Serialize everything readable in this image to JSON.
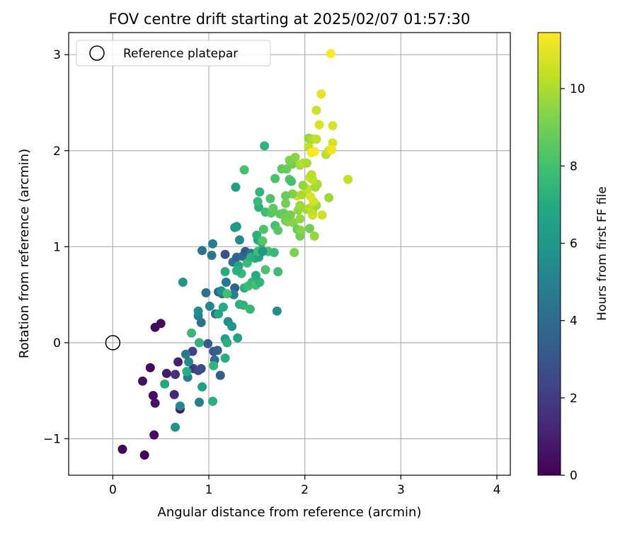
{
  "chart_data": {
    "type": "scatter",
    "title": "FOV centre drift starting at 2025/02/07 01:57:30",
    "xlabel": "Angular distance from reference (arcmin)",
    "ylabel": "Rotation from reference (arcmin)",
    "xlim": [
      -0.46,
      4.14
    ],
    "ylim": [
      -1.38,
      3.23
    ],
    "xticks": [
      0,
      1,
      2,
      3,
      4
    ],
    "yticks": [
      -1,
      0,
      1,
      2,
      3
    ],
    "xtick_labels": [
      "0",
      "1",
      "2",
      "3",
      "4"
    ],
    "ytick_labels": [
      "−1",
      "0",
      "1",
      "2",
      "3"
    ],
    "grid": true,
    "legend": {
      "placement": "top-left",
      "entries": [
        "Reference platepar"
      ]
    },
    "reference_point": {
      "name": "Reference platepar",
      "x": 0,
      "y": 0
    },
    "colorbar": {
      "label": "Hours from first FF file",
      "range": [
        0,
        11.45
      ],
      "ticks": [
        0,
        2,
        4,
        6,
        8,
        10
      ],
      "tick_labels": [
        "0",
        "2",
        "4",
        "6",
        "8",
        "10"
      ],
      "colormap": "viridis"
    },
    "points": [
      [
        0.33,
        -1.17,
        0.1
      ],
      [
        0.1,
        -1.11,
        0.2
      ],
      [
        0.43,
        -0.96,
        0.4
      ],
      [
        0.31,
        -0.4,
        0.5
      ],
      [
        0.42,
        -0.55,
        0.5
      ],
      [
        0.44,
        -0.63,
        0.6
      ],
      [
        0.39,
        -0.26,
        0.3
      ],
      [
        0.56,
        -0.32,
        0.8
      ],
      [
        0.44,
        0.16,
        0.3
      ],
      [
        0.5,
        0.2,
        0.4
      ],
      [
        0.68,
        -0.2,
        1.0
      ],
      [
        0.7,
        -0.69,
        0.6
      ],
      [
        0.64,
        -0.54,
        1.2
      ],
      [
        0.65,
        -0.33,
        1.6
      ],
      [
        0.83,
        -0.09,
        2.2
      ],
      [
        0.84,
        -0.27,
        1.8
      ],
      [
        0.89,
        -0.29,
        2.4
      ],
      [
        0.92,
        -0.27,
        2.6
      ],
      [
        1.12,
        -0.34,
        3.4
      ],
      [
        1.05,
        -0.09,
        3.0
      ],
      [
        0.99,
        -0.01,
        3.2
      ],
      [
        1.09,
        -0.08,
        3.6
      ],
      [
        1.06,
        -0.18,
        4.0
      ],
      [
        0.79,
        -0.2,
        5.4
      ],
      [
        0.76,
        -0.12,
        4.6
      ],
      [
        0.78,
        -0.36,
        5.0
      ],
      [
        0.9,
        -0.62,
        4.8
      ],
      [
        0.7,
        -0.66,
        5.2
      ],
      [
        0.65,
        -0.88,
        5.8
      ],
      [
        0.92,
        0.21,
        4.2
      ],
      [
        0.89,
        0.28,
        5.0
      ],
      [
        0.89,
        0.33,
        5.6
      ],
      [
        0.97,
        0.52,
        4.4
      ],
      [
        1.01,
        0.38,
        5.2
      ],
      [
        1.1,
        0.53,
        3.6
      ],
      [
        1.14,
        0.51,
        4.2
      ],
      [
        1.18,
        0.63,
        4.6
      ],
      [
        1.27,
        0.57,
        3.4
      ],
      [
        1.26,
        0.5,
        5.0
      ],
      [
        1.07,
        0.3,
        4.0
      ],
      [
        1.17,
        0.92,
        2.8
      ],
      [
        1.04,
        1.03,
        4.8
      ],
      [
        1.03,
        0.91,
        4.6
      ],
      [
        0.93,
        0.96,
        4.4
      ],
      [
        1.25,
        0.84,
        4.2
      ],
      [
        1.29,
        0.89,
        3.6
      ],
      [
        1.35,
        0.9,
        4.0
      ],
      [
        1.38,
        0.95,
        3.2
      ],
      [
        1.44,
        0.93,
        4.4
      ],
      [
        1.32,
        1.07,
        5.4
      ],
      [
        1.27,
        1.2,
        5.8
      ],
      [
        1.29,
        1.21,
        6.2
      ],
      [
        1.2,
        0.22,
        5.6
      ],
      [
        1.24,
        0.17,
        6.0
      ],
      [
        1.17,
        0.04,
        6.4
      ],
      [
        1.17,
        -0.16,
        7.0
      ],
      [
        1.19,
        0.0,
        7.2
      ],
      [
        1.05,
        -0.24,
        7.4
      ],
      [
        0.93,
        -0.46,
        6.4
      ],
      [
        1.04,
        -0.61,
        7.2
      ],
      [
        0.54,
        -0.43,
        6.8
      ],
      [
        0.77,
        -0.3,
        7.2
      ],
      [
        0.9,
        0.0,
        7.4
      ],
      [
        0.82,
        0.1,
        7.6
      ],
      [
        1.3,
        0.05,
        6.6
      ],
      [
        1.1,
        0.3,
        6.8
      ],
      [
        1.15,
        0.37,
        7.0
      ],
      [
        1.17,
        0.74,
        7.0
      ],
      [
        1.32,
        0.4,
        7.2
      ],
      [
        1.36,
        0.39,
        7.4
      ],
      [
        1.43,
        0.35,
        7.6
      ],
      [
        1.37,
        0.57,
        7.2
      ],
      [
        1.41,
        0.59,
        7.8
      ],
      [
        1.45,
        0.63,
        7.6
      ],
      [
        1.49,
        0.6,
        8.0
      ],
      [
        1.53,
        0.63,
        7.4
      ],
      [
        1.49,
        0.7,
        7.0
      ],
      [
        1.31,
        0.8,
        6.8
      ],
      [
        1.34,
        0.72,
        7.6
      ],
      [
        1.29,
        0.75,
        7.2
      ],
      [
        1.4,
        0.83,
        7.8
      ],
      [
        1.44,
        0.89,
        7.4
      ],
      [
        1.48,
        0.88,
        7.2
      ],
      [
        1.52,
        0.89,
        6.6
      ],
      [
        1.51,
        0.95,
        7.8
      ],
      [
        1.55,
        0.97,
        7.8
      ],
      [
        1.62,
        0.95,
        8.0
      ],
      [
        1.68,
        0.94,
        7.6
      ],
      [
        1.72,
        0.74,
        7.8
      ],
      [
        1.59,
        0.76,
        8.2
      ],
      [
        1.56,
        0.95,
        6.0
      ],
      [
        1.55,
        1.05,
        6.4
      ],
      [
        1.51,
        1.07,
        7.0
      ],
      [
        1.5,
        1.12,
        7.2
      ],
      [
        1.57,
        1.18,
        8.2
      ],
      [
        1.56,
        1.06,
        8.4
      ],
      [
        1.71,
        0.33,
        5.6
      ],
      [
        1.28,
        1.62,
        6.4
      ],
      [
        1.13,
        0.54,
        5.8
      ],
      [
        1.19,
        0.51,
        8.0
      ],
      [
        0.73,
        0.63,
        6.0
      ],
      [
        1.52,
        1.41,
        7.2
      ],
      [
        1.51,
        1.47,
        7.6
      ],
      [
        1.53,
        1.57,
        7.4
      ],
      [
        1.59,
        1.36,
        7.8
      ],
      [
        1.64,
        1.5,
        8.2
      ],
      [
        1.65,
        1.35,
        8.4
      ],
      [
        1.67,
        1.4,
        8.6
      ],
      [
        1.69,
        1.22,
        8.0
      ],
      [
        1.72,
        1.17,
        8.4
      ],
      [
        1.74,
        1.34,
        8.6
      ],
      [
        1.78,
        1.35,
        8.8
      ],
      [
        1.8,
        1.45,
        9.0
      ],
      [
        1.8,
        1.27,
        8.8
      ],
      [
        1.82,
        1.26,
        9.2
      ],
      [
        1.85,
        1.33,
        9.0
      ],
      [
        1.88,
        1.25,
        9.4
      ],
      [
        1.89,
        0.94,
        9.2
      ],
      [
        1.92,
        1.18,
        8.8
      ],
      [
        1.95,
        1.11,
        9.0
      ],
      [
        1.96,
        1.17,
        9.4
      ],
      [
        1.95,
        1.29,
        9.6
      ],
      [
        1.93,
        1.38,
        9.6
      ],
      [
        1.95,
        1.43,
        9.8
      ],
      [
        1.92,
        1.53,
        10.6
      ],
      [
        1.97,
        1.54,
        10.0
      ],
      [
        2.02,
        1.39,
        9.8
      ],
      [
        2.05,
        1.4,
        10.2
      ],
      [
        2.08,
        1.33,
        10.6
      ],
      [
        2.08,
        1.37,
        10.4
      ],
      [
        2.1,
        1.11,
        9.6
      ],
      [
        2.05,
        1.19,
        9.0
      ],
      [
        2.12,
        1.43,
        9.8
      ],
      [
        2.09,
        1.47,
        10.6
      ],
      [
        2.06,
        1.52,
        10.8
      ],
      [
        2.03,
        1.6,
        10.4
      ],
      [
        2.11,
        1.62,
        9.8
      ],
      [
        2.13,
        1.65,
        10.0
      ],
      [
        1.98,
        1.64,
        9.6
      ],
      [
        1.87,
        1.55,
        9.2
      ],
      [
        1.8,
        1.53,
        8.8
      ],
      [
        1.84,
        1.7,
        8.4
      ],
      [
        1.86,
        1.68,
        8.0
      ],
      [
        1.69,
        1.71,
        8.2
      ],
      [
        1.76,
        1.81,
        8.6
      ],
      [
        1.81,
        1.81,
        8.8
      ],
      [
        1.87,
        1.86,
        9.0
      ],
      [
        1.84,
        1.9,
        9.2
      ],
      [
        1.9,
        1.93,
        9.4
      ],
      [
        1.95,
        1.85,
        9.8
      ],
      [
        1.98,
        1.87,
        10.2
      ],
      [
        2.02,
        1.87,
        10.0
      ],
      [
        2.05,
        1.72,
        10.4
      ],
      [
        2.08,
        1.7,
        10.4
      ],
      [
        2.07,
        1.75,
        10.2
      ],
      [
        1.37,
        1.8,
        8.0
      ],
      [
        1.58,
        2.05,
        7.4
      ],
      [
        2.04,
        2.04,
        10.4
      ],
      [
        2.04,
        2.13,
        9.6
      ],
      [
        2.08,
        2.12,
        10.0
      ],
      [
        2.12,
        2.12,
        10.4
      ],
      [
        2.12,
        2.42,
        10.6
      ],
      [
        2.15,
        2.27,
        10.8
      ],
      [
        2.17,
        2.59,
        11.0
      ],
      [
        2.18,
        1.33,
        10.6
      ],
      [
        2.22,
        1.96,
        10.2
      ],
      [
        2.25,
        2.0,
        10.6
      ],
      [
        2.25,
        1.51,
        9.8
      ],
      [
        2.29,
        2.26,
        10.8
      ],
      [
        2.29,
        2.08,
        10.8
      ],
      [
        2.28,
        2.01,
        11.2
      ],
      [
        2.27,
        3.01,
        11.4
      ],
      [
        2.45,
        1.7,
        10.4
      ],
      [
        2.07,
        1.98,
        11.3
      ],
      [
        2.1,
        1.99,
        11.4
      ]
    ]
  }
}
